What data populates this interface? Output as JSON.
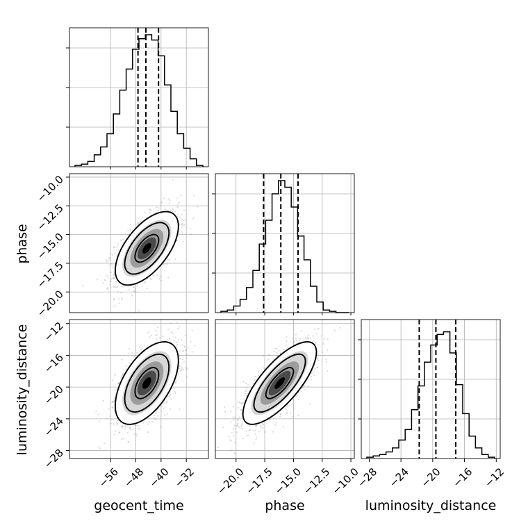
{
  "chart_data": {
    "type": "corner",
    "parameters": [
      "geocent_time",
      "phase",
      "luminosity_distance"
    ],
    "axis_labels": [
      "geocent_time",
      "phase",
      "luminosity_distance"
    ],
    "ranges": {
      "geocent_time": [
        -69,
        -25
      ],
      "phase": [
        -21.8,
        -9.7
      ],
      "luminosity_distance": [
        -29,
        -11.5
      ]
    },
    "ticks": {
      "geocent_time": [
        "−56",
        "−48",
        "−40",
        "−32"
      ],
      "phase": [
        "−20.0",
        "−17.5",
        "−15.0",
        "−12.5",
        "−10.0"
      ],
      "luminosity_distance": [
        "−28",
        "−24",
        "−20",
        "−16",
        "−12"
      ]
    },
    "tick_values": {
      "geocent_time": [
        -56,
        -48,
        -40,
        -32
      ],
      "phase": [
        -20,
        -17.5,
        -15,
        -12.5,
        -10
      ],
      "luminosity_distance": [
        -28,
        -24,
        -20,
        -16,
        -12
      ]
    },
    "quantiles": {
      "geocent_time": [
        -47.3,
        -44.8,
        -40.8
      ],
      "phase": [
        -17.6,
        -16.1,
        -14.6
      ],
      "luminosity_distance": [
        -21.7,
        -19.6,
        -17.1
      ]
    },
    "histograms": [
      {
        "parameter": "geocent_time",
        "bins": 20,
        "counts": [
          1,
          2,
          4,
          9,
          15,
          25,
          40,
          58,
          74,
          89,
          97,
          100,
          96,
          84,
          62,
          42,
          25,
          14,
          6,
          1
        ]
      },
      {
        "parameter": "phase",
        "bins": 20,
        "counts": [
          1,
          2,
          5,
          10,
          19,
          32,
          52,
          70,
          90,
          100,
          95,
          80,
          58,
          40,
          20,
          8,
          2,
          1,
          0,
          0
        ]
      },
      {
        "parameter": "luminosity_distance",
        "bins": 20,
        "counts": [
          1,
          2,
          3,
          5,
          8,
          14,
          22,
          37,
          55,
          73,
          86,
          94,
          96,
          80,
          56,
          34,
          17,
          8,
          3,
          1
        ]
      }
    ],
    "joint": [
      {
        "x": "geocent_time",
        "y": "phase",
        "mean": [
          -44.5,
          -16.2
        ],
        "sd": [
          5.0,
          1.6
        ],
        "correlation": 0.6
      },
      {
        "x": "geocent_time",
        "y": "luminosity_distance",
        "mean": [
          -44.5,
          -19.5
        ],
        "sd": [
          5.0,
          2.6
        ],
        "correlation": 0.55
      },
      {
        "x": "phase",
        "y": "luminosity_distance",
        "mean": [
          -16.2,
          -19.5
        ],
        "sd": [
          1.6,
          2.6
        ],
        "correlation": 0.75
      }
    ],
    "grid": true,
    "quantile_lines": "dashed"
  }
}
